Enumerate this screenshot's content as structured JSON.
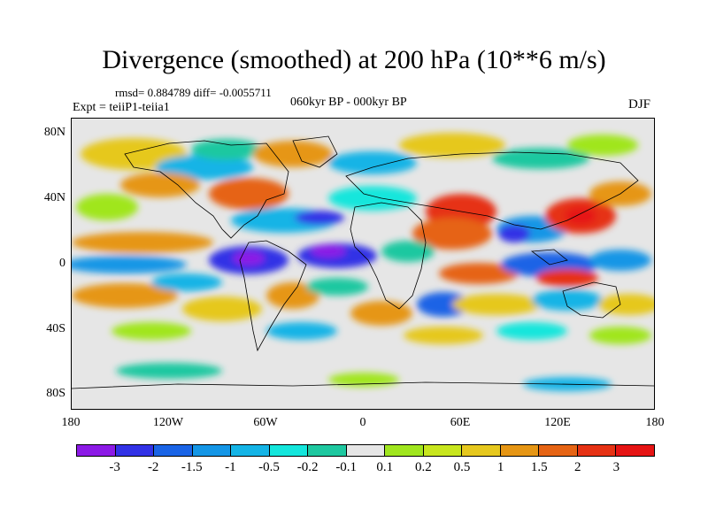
{
  "title": "Divergence (smoothed) at 200 hPa (10**6 m/s)",
  "stats_line": "rmsd= 0.884789 diff= -0.0055711",
  "experiment": "Expt = teiiP1-teiia1",
  "period": "060kyr BP - 000kyr BP",
  "season": "DJF",
  "lat_labels": [
    "80N",
    "40N",
    "0",
    "40S",
    "80S"
  ],
  "lon_labels": [
    "180",
    "120W",
    "60W",
    "0",
    "60E",
    "120E",
    "180"
  ],
  "colorbar": {
    "colors": [
      "#8c1ae6",
      "#3232e6",
      "#1a64e6",
      "#1496e6",
      "#14b4e6",
      "#14e6dc",
      "#1ec8a0",
      "#e6e6e6",
      "#a0e61e",
      "#c8e61e",
      "#e6c81e",
      "#e69614",
      "#e66414",
      "#e63214",
      "#e61414"
    ],
    "labels": [
      "-3",
      "-2",
      "-1.5",
      "-1",
      "-0.5",
      "-0.2",
      "-0.1",
      "0.1",
      "0.2",
      "0.5",
      "1",
      "1.5",
      "2",
      "3"
    ]
  }
}
